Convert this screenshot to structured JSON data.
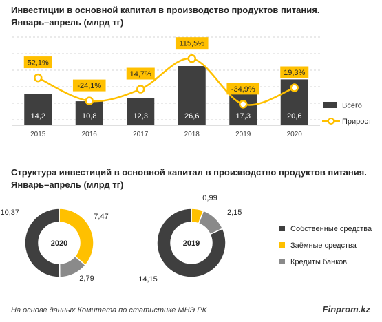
{
  "chart_data": [
    {
      "type": "bar",
      "title": "Инвестиции в основной капитал в производство продуктов питания.",
      "subtitle": "Январь–апрель (млрд тг)",
      "categories": [
        "2015",
        "2016",
        "2017",
        "2018",
        "2019",
        "2020"
      ],
      "series": [
        {
          "name": "Всего",
          "type": "bar",
          "values": [
            14.2,
            10.8,
            12.3,
            26.6,
            17.3,
            20.6
          ],
          "labels": [
            "14,2",
            "10,8",
            "12,3",
            "26,6",
            "17,3",
            "20,6"
          ],
          "color": "#3f3f3f"
        },
        {
          "name": "Прирост",
          "type": "line",
          "values": [
            52.1,
            -24.1,
            14.7,
            115.5,
            -34.9,
            19.3
          ],
          "labels": [
            "52,1%",
            "-24,1%",
            "14,7%",
            "115,5%",
            "-34,9%",
            "19,3%"
          ],
          "color": "#ffc000"
        }
      ],
      "grid": true,
      "legend": "right"
    },
    {
      "type": "pie",
      "title": "Структура инвестиций в основной капитал в производство продуктов питания.",
      "subtitle": "Январь–апрель (млрд тг)",
      "legend": "right",
      "categories": [
        "Собственные средства",
        "Заёмные средства",
        "Кредиты банков"
      ],
      "colors": [
        "#3f3f3f",
        "#ffc000",
        "#8a8a8a"
      ],
      "charts": [
        {
          "center_label": "2020",
          "values": [
            10.37,
            7.47,
            2.79
          ],
          "labels": [
            "10,37",
            "7,47",
            "2,79"
          ]
        },
        {
          "center_label": "2019",
          "values": [
            14.15,
            0.99,
            2.15
          ],
          "labels": [
            "14,15",
            "0,99",
            "2,15"
          ]
        }
      ]
    }
  ],
  "footer": {
    "source": "На основе данных Комитета по статистике МНЭ РК",
    "brand": "Finprom.kz"
  }
}
